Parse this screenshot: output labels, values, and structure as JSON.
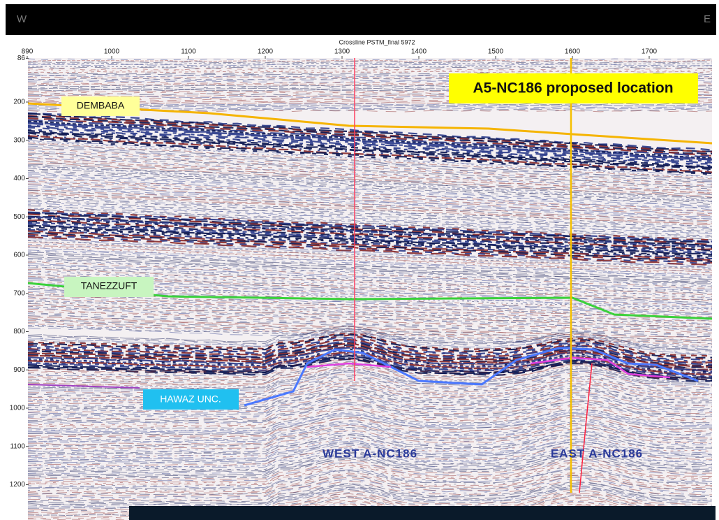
{
  "header": {
    "left": "W",
    "right": "E"
  },
  "section": {
    "title": "Crossline PSTM_final 5972",
    "x_ticks": [
      890,
      1000,
      1100,
      1200,
      1300,
      1400,
      1500,
      1600,
      1700
    ],
    "y_ticks": [
      86,
      200,
      300,
      400,
      500,
      600,
      700,
      800,
      900,
      1000,
      1100,
      1200
    ]
  },
  "annotations": {
    "proposed_location": "A5-NC186 proposed location",
    "horizons": [
      "DEMBABA",
      "TANEZZUFT",
      "HAWAZ UNC."
    ],
    "wells": [
      "WEST A-NC186",
      "EAST A-NC186"
    ]
  }
}
